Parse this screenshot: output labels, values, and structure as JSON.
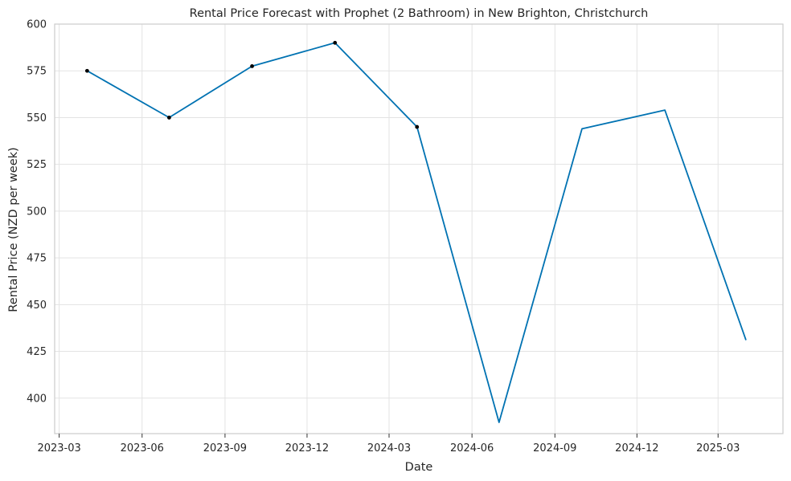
{
  "chart_data": {
    "type": "line",
    "title": "Rental Price Forecast with Prophet (2 Bathroom) in New Brighton, Christchurch",
    "xlabel": "Date",
    "ylabel": "Rental Price (NZD per week)",
    "x_ticks": [
      "2023-03",
      "2023-06",
      "2023-09",
      "2023-12",
      "2024-03",
      "2024-06",
      "2024-09",
      "2024-12",
      "2025-03"
    ],
    "y_ticks": [
      400,
      425,
      450,
      475,
      500,
      525,
      550,
      575,
      600
    ],
    "xlim": [
      "2023-02-24",
      "2025-05-12"
    ],
    "ylim": [
      381,
      600
    ],
    "grid": true,
    "series": [
      {
        "role": "forecast",
        "color": "#0072B2",
        "x": [
          "2023-04-01",
          "2023-07-01",
          "2023-10-01",
          "2024-01-01",
          "2024-04-01",
          "2024-07-01",
          "2024-10-01",
          "2025-01-01",
          "2025-04-01"
        ],
        "y": [
          575,
          550,
          577.5,
          590,
          545,
          387,
          544,
          554,
          431
        ]
      },
      {
        "role": "observed",
        "color": "#000000",
        "x": [
          "2023-04-01",
          "2023-07-01",
          "2023-10-01",
          "2024-01-01",
          "2024-04-01"
        ],
        "y": [
          575,
          550,
          577.5,
          590,
          545
        ]
      }
    ]
  }
}
